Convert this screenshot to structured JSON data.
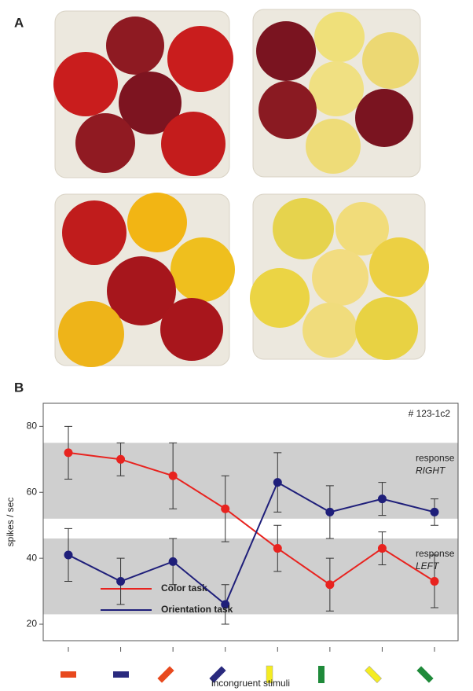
{
  "panel_a": {
    "label": "A"
  },
  "chart_data": {
    "type": "line",
    "panel_label": "B",
    "annotation": "# 123-1c2",
    "ylabel": "spikes / sec",
    "xlabel": "incongruent stimuli",
    "categories": [
      null,
      null,
      null,
      null,
      null,
      null,
      null,
      null
    ],
    "series": [
      {
        "name": "Color task",
        "color": "#e8231f",
        "values": [
          72,
          70,
          65,
          55,
          43,
          32,
          43,
          33
        ],
        "errors": [
          8,
          5,
          10,
          10,
          7,
          8,
          5,
          8
        ]
      },
      {
        "name": "Orientation task",
        "color": "#1f1f7a",
        "values": [
          41,
          33,
          39,
          26,
          63,
          54,
          58,
          54
        ],
        "errors": [
          8,
          7,
          7,
          6,
          9,
          8,
          5,
          4
        ]
      }
    ],
    "bands": [
      {
        "range": [
          52,
          75
        ],
        "label": [
          "response",
          "RIGHT"
        ]
      },
      {
        "range": [
          23,
          46
        ],
        "label": [
          "response",
          "LEFT"
        ]
      }
    ],
    "ylim": [
      15,
      87
    ],
    "yticks": [
      20,
      40,
      60,
      80
    ]
  }
}
